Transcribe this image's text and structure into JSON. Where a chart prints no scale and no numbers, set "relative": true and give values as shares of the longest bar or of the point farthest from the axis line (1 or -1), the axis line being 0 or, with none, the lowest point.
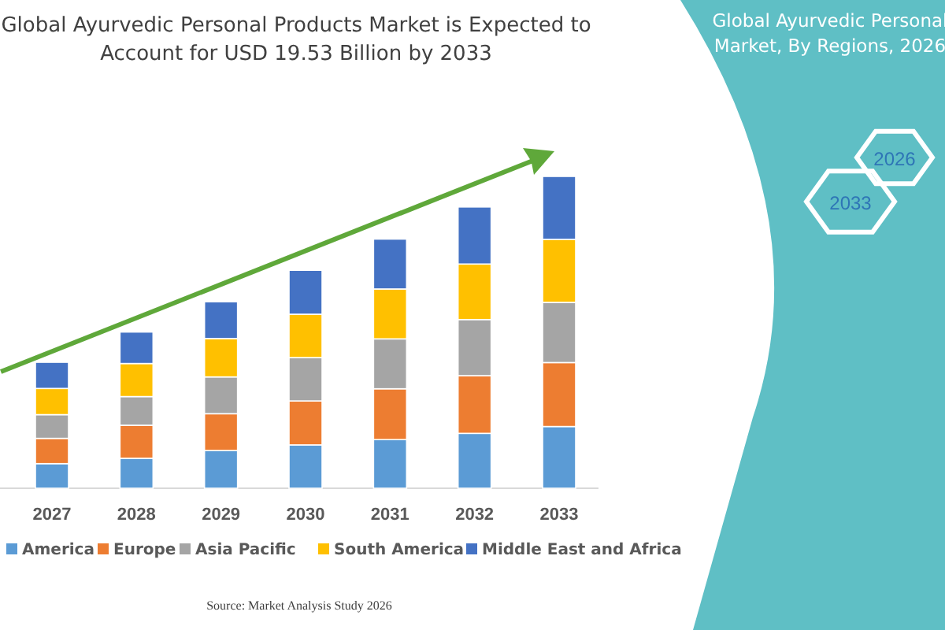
{
  "chart_data": {
    "type": "bar",
    "title": "Global Ayurvedic Personal Products Market is Expected to Account for USD 19.53 Billion by 2033",
    "categories": [
      "2027",
      "2028",
      "2029",
      "2030",
      "2031",
      "2032",
      "2033"
    ],
    "relative": true,
    "stacked": true,
    "legend": "bottom",
    "series": [
      {
        "name": "America",
        "color": "#5b9bd5",
        "values": [
          0.079,
          0.096,
          0.121,
          0.139,
          0.156,
          0.176,
          0.198
        ]
      },
      {
        "name": "Europe",
        "color": "#ed7d31",
        "values": [
          0.081,
          0.106,
          0.118,
          0.141,
          0.163,
          0.185,
          0.205
        ]
      },
      {
        "name": "Asia Pacific",
        "color": "#a5a5a5",
        "values": [
          0.076,
          0.092,
          0.118,
          0.139,
          0.16,
          0.18,
          0.193
        ]
      },
      {
        "name": "South America",
        "color": "#ffc000",
        "values": [
          0.084,
          0.106,
          0.123,
          0.139,
          0.16,
          0.178,
          0.202
        ]
      },
      {
        "name": "Middle East and Africa",
        "color": "#4472c4",
        "values": [
          0.084,
          0.101,
          0.118,
          0.141,
          0.16,
          0.183,
          0.202
        ]
      }
    ],
    "annotations": [
      "Global Ayurvedic Personal Market, By Regions, 2026",
      "2033",
      "2026",
      "Source: Market Analysis Study 2026"
    ]
  }
}
